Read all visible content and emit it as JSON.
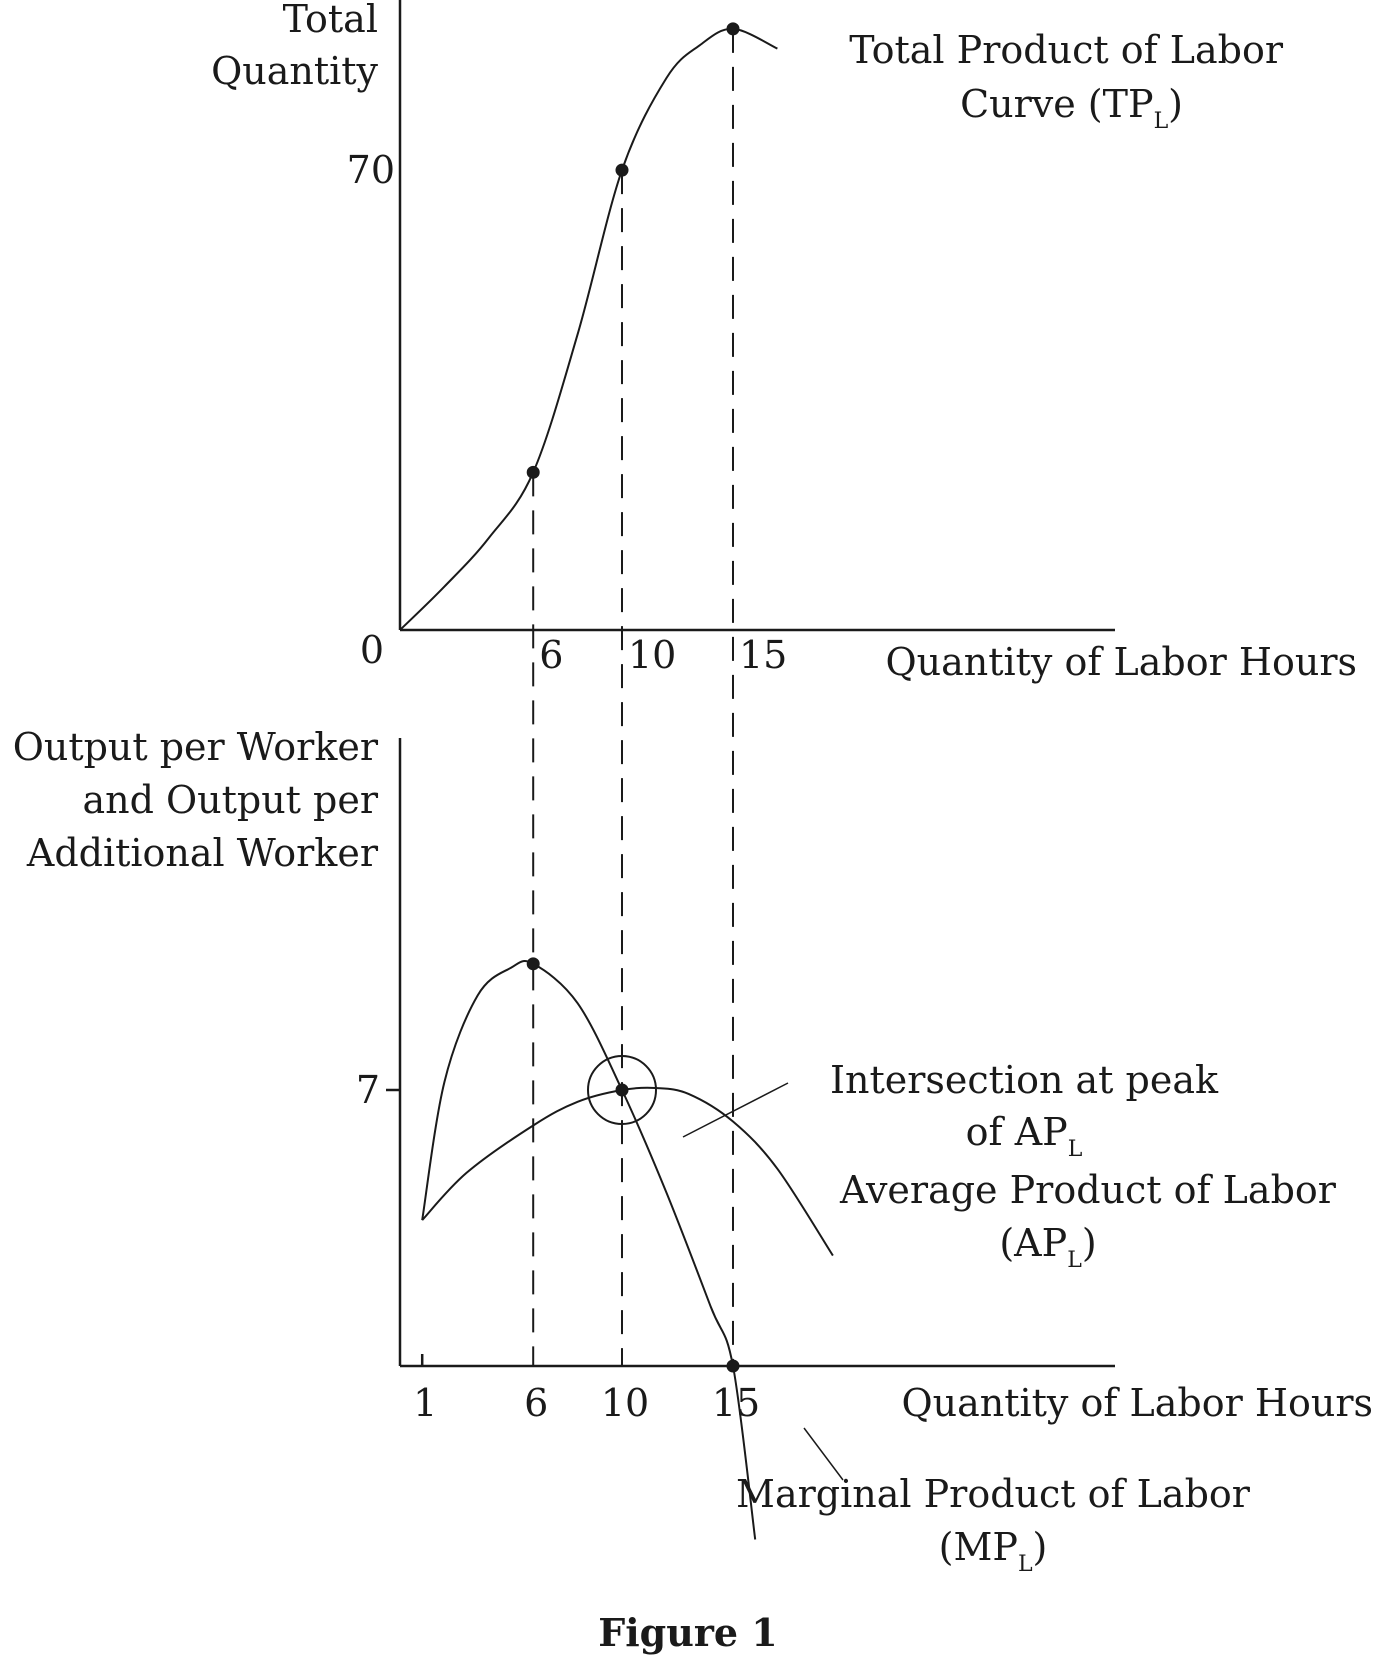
{
  "colors": {
    "ink": "#1a1a1a",
    "background": "#ffffff"
  },
  "top_panel": {
    "y_label_lines": [
      "Total",
      "Quantity"
    ],
    "y_tick": "70",
    "origin_label": "0",
    "x_ticks": [
      "6",
      "10",
      "15"
    ],
    "x_label": "Quantity of Labor Hours",
    "curve_label_line1": "Total Product of Labor",
    "curve_label_line2": {
      "text": "Curve (TP",
      "sub": "L",
      "close": ")"
    }
  },
  "bottom_panel": {
    "y_label_lines": [
      "Output per Worker",
      "and Output per",
      "Additional Worker"
    ],
    "y_tick": "7",
    "x_ticks": [
      "1",
      "6",
      "10",
      "15"
    ],
    "x_label": "Quantity of Labor Hours",
    "intersection_label_line1": "Intersection at peak",
    "intersection_label_line2": {
      "text": "of AP",
      "sub": "L"
    },
    "ap_label_line1": "Average Product of Labor",
    "ap_label_line2": {
      "text": "(AP",
      "sub": "L",
      "close": ")"
    },
    "mp_label_line1": "Marginal Product of Labor",
    "mp_label_line2": {
      "text": "(MP",
      "sub": "L",
      "close": ")"
    }
  },
  "caption": "Figure 1",
  "chart_data": [
    {
      "type": "line",
      "title": "",
      "xlabel": "Quantity of Labor Hours",
      "ylabel": "Total Quantity",
      "xlim": [
        0,
        22
      ],
      "ylim": [
        0,
        105
      ],
      "x_ticks": [
        6,
        10,
        15
      ],
      "y_ticks": [
        70
      ],
      "grid": false,
      "series": [
        {
          "name": "Total Product of Labor Curve (TPL)",
          "x": [
            0,
            2,
            4,
            6,
            8,
            10,
            12,
            13.5,
            15,
            17
          ],
          "y": [
            0,
            6.6,
            14,
            24,
            45,
            70,
            84,
            89,
            91.5,
            88.5
          ],
          "markers": [
            [
              6,
              24
            ],
            [
              10,
              70
            ],
            [
              15,
              91.5
            ]
          ]
        }
      ],
      "guides_x": [
        6,
        10,
        15
      ]
    },
    {
      "type": "line",
      "title": "",
      "xlabel": "Quantity of Labor Hours",
      "ylabel": "Output per Worker and Output per Additional Worker",
      "xlim": [
        0,
        22
      ],
      "ylim": [
        0,
        20
      ],
      "x_ticks": [
        1,
        6,
        10,
        15
      ],
      "y_ticks": [
        7
      ],
      "grid": false,
      "series": [
        {
          "name": "Average Product of Labor (APL)",
          "x": [
            1,
            3,
            6,
            8,
            10,
            11.5,
            13,
            15,
            17,
            19.5
          ],
          "y": [
            3.7,
            4.9,
            6.1,
            6.7,
            7,
            7.05,
            6.9,
            6.2,
            5.0,
            2.8
          ],
          "markers": [
            [
              10,
              7
            ]
          ]
        },
        {
          "name": "Marginal Product of Labor (MPL)",
          "x": [
            1,
            2,
            3.5,
            5,
            6,
            8,
            10,
            12,
            14,
            15,
            16
          ],
          "y": [
            3.7,
            7.2,
            9.4,
            10.1,
            10.2,
            9.2,
            7,
            4.4,
            1.5,
            0,
            -4.4
          ],
          "markers": [
            [
              6,
              10.2
            ],
            [
              15,
              0
            ]
          ]
        }
      ],
      "guides_x": [
        6,
        10,
        15
      ],
      "annotations": [
        "Intersection at peak of APL"
      ]
    }
  ]
}
